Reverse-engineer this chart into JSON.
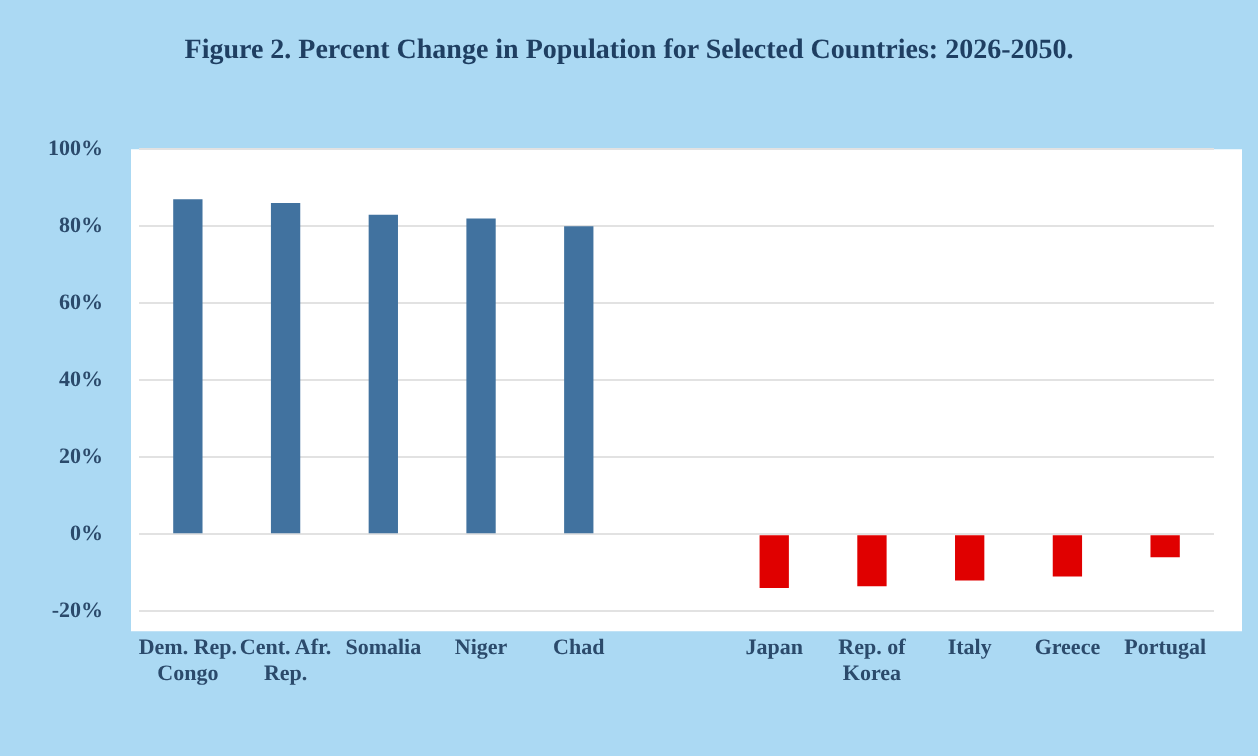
{
  "chart_data": {
    "type": "bar",
    "title": "Figure 2. Percent Change in Population for Selected Countries: 2026-2050.",
    "categories": [
      "Dem. Rep. Congo",
      "Cent. Afr. Rep.",
      "Somalia",
      "Niger",
      "Chad",
      null,
      "Japan",
      "Rep. of Korea",
      "Italy",
      "Greece",
      "Portugal"
    ],
    "values": [
      87,
      86,
      83,
      82,
      80,
      null,
      -14,
      -13.5,
      -12,
      -11,
      -6
    ],
    "colors": [
      "#41729f",
      "#41729f",
      "#41729f",
      "#41729f",
      "#41729f",
      null,
      "#e00000",
      "#e00000",
      "#e00000",
      "#e00000",
      "#e00000"
    ],
    "ylim": [
      -20,
      100
    ],
    "yticks": [
      {
        "value": -20,
        "label": "-20%"
      },
      {
        "value": 0,
        "label": "0%"
      },
      {
        "value": 20,
        "label": "20%"
      },
      {
        "value": 40,
        "label": "40%"
      },
      {
        "value": 60,
        "label": "60%"
      },
      {
        "value": 80,
        "label": "80%"
      },
      {
        "value": 100,
        "label": "100%"
      }
    ],
    "grid": "y"
  }
}
